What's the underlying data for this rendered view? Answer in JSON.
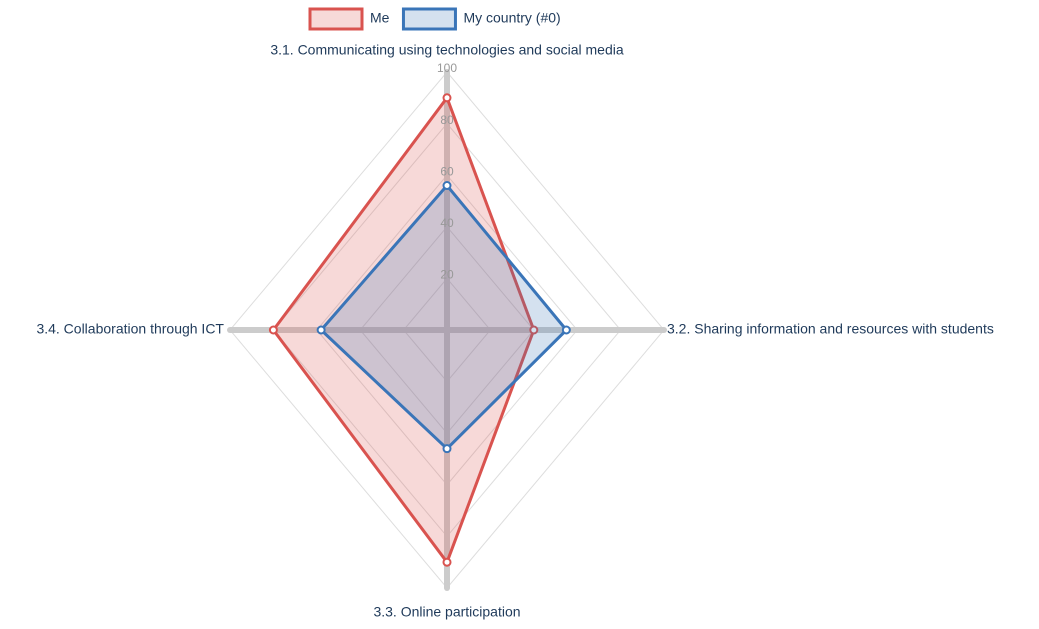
{
  "chart_data": {
    "type": "radar",
    "categories": [
      "3.1. Communicating using technologies and social media",
      "3.2. Sharing information and resources with students",
      "3.3. Online participation",
      "3.4. Collaboration through ICT"
    ],
    "series": [
      {
        "name": "Me",
        "color": "#d9534f",
        "values": [
          90,
          40,
          90,
          80
        ]
      },
      {
        "name": "My country (#0)",
        "color": "#3a75b8",
        "values": [
          56,
          55,
          46,
          58
        ]
      }
    ],
    "rlim": [
      0,
      100
    ],
    "rticks": [
      20,
      40,
      60,
      80,
      100
    ],
    "grid": true,
    "legend": "top"
  }
}
